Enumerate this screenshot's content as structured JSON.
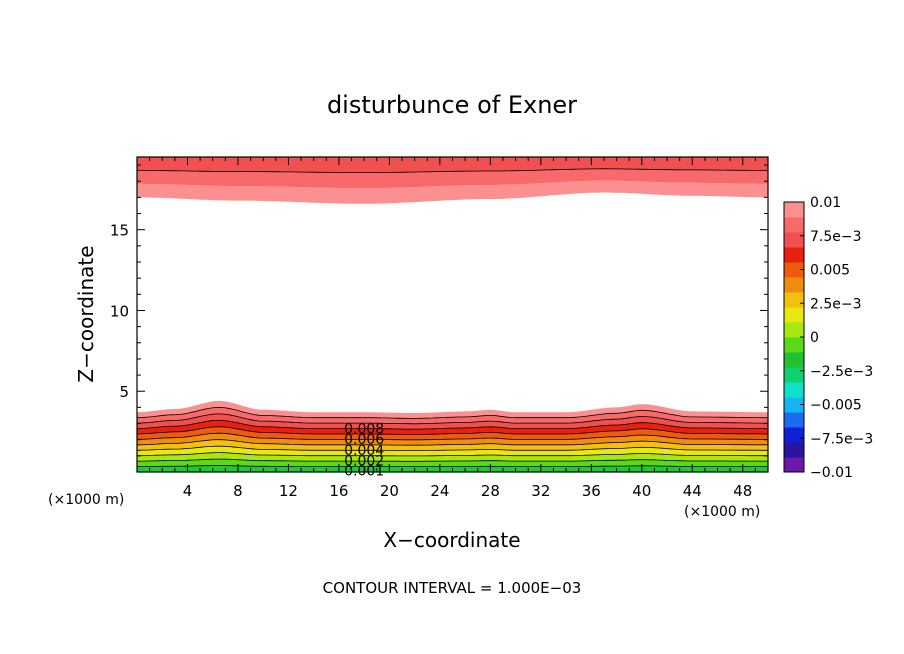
{
  "chart_data": {
    "type": "contour",
    "title": "disturbunce of Exner",
    "xlabel": "X−coordinate",
    "ylabel": "Z−coordinate",
    "x_unit_left": "(×1000 m)",
    "x_unit_right": "(×1000 m)",
    "footer": "CONTOUR INTERVAL = 1.000E−03",
    "xlim": [
      0,
      50
    ],
    "ylim": [
      0,
      19.5
    ],
    "x_ticks": [
      4,
      8,
      12,
      16,
      20,
      24,
      28,
      32,
      36,
      40,
      44,
      48
    ],
    "x_tick_labels": [
      "4",
      "8",
      "12",
      "16",
      "20",
      "24",
      "28",
      "32",
      "36",
      "40",
      "44",
      "48"
    ],
    "y_ticks": [
      5,
      10,
      15
    ],
    "y_tick_labels": [
      "5",
      "10",
      "15"
    ],
    "contour_interval": 0.001,
    "contour_labels": [
      {
        "text": "0.008",
        "x": 18,
        "y": 2.7
      },
      {
        "text": "0.006",
        "x": 18,
        "y": 2.05
      },
      {
        "text": "0.004",
        "x": 18,
        "y": 1.35
      },
      {
        "text": "0.002",
        "x": 18,
        "y": 0.7
      },
      {
        "text": "0.001",
        "x": 18,
        "y": 0.1
      }
    ],
    "bottom_layer": {
      "x": [
        0,
        3,
        6.5,
        10,
        14,
        18,
        22,
        26,
        28,
        30,
        34,
        38,
        40,
        44,
        50
      ],
      "top_boundary_z": [
        3.7,
        3.9,
        4.4,
        3.85,
        3.7,
        3.7,
        3.65,
        3.75,
        3.85,
        3.7,
        3.7,
        4.0,
        4.2,
        3.75,
        3.7
      ]
    },
    "top_layer": {
      "x": [
        0,
        8,
        18,
        28,
        37,
        44,
        50
      ],
      "bottom_boundary_z": [
        17.0,
        16.8,
        16.6,
        16.9,
        17.3,
        17.1,
        17.0
      ],
      "z_top": 19.5
    },
    "colorbar": {
      "tick_labels": [
        "0.01",
        "7.5e−3",
        "0.005",
        "2.5e−3",
        "0",
        "−2.5e−3",
        "−0.005",
        "−7.5e−3",
        "−0.01"
      ],
      "range": [
        -0.01,
        0.01
      ],
      "colors": [
        "#6b1aa8",
        "#2a14a0",
        "#1020d8",
        "#1a6cf0",
        "#16b4f0",
        "#10e0c8",
        "#10d070",
        "#20c030",
        "#5ad81a",
        "#a8e614",
        "#e8e810",
        "#f4c010",
        "#f08c10",
        "#ee5a10",
        "#e8200e",
        "#f05050",
        "#f86a6a",
        "#fc9090"
      ]
    },
    "fill_colors_by_level": [
      "#22c838",
      "#5ad81a",
      "#a8e614",
      "#e8e810",
      "#f4c010",
      "#f08c10",
      "#ee5a10",
      "#e8200e",
      "#f05050",
      "#f86a6a",
      "#fc9090"
    ],
    "top_fill_colors": [
      "#fc9090",
      "#f86a6a",
      "#f05050"
    ]
  }
}
